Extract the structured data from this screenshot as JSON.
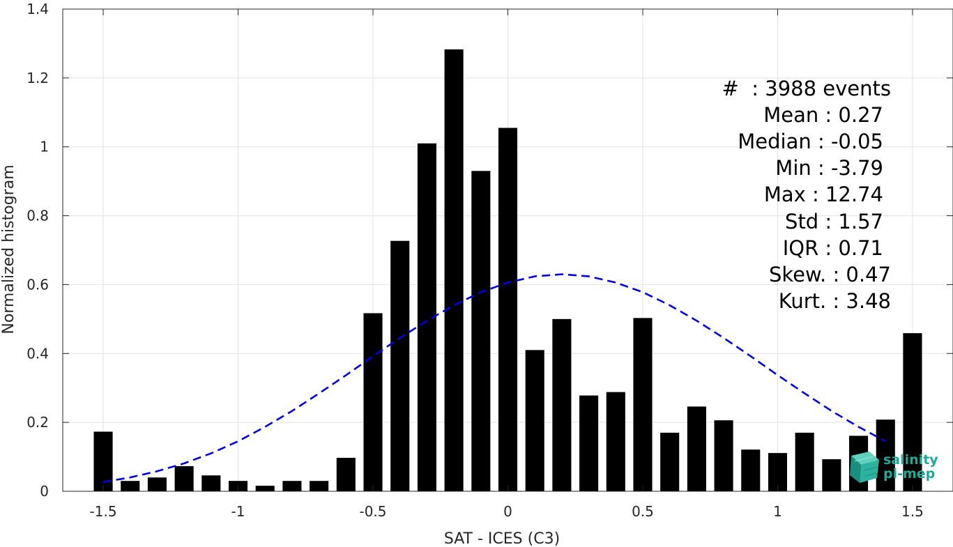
{
  "chart_data": {
    "type": "bar",
    "xlabel": "SAT - ICES (C3)",
    "ylabel": "Normalized histogram",
    "xlim": [
      -1.65,
      1.65
    ],
    "ylim": [
      0,
      1.4
    ],
    "grid": true,
    "bar_width": 0.07,
    "x_ticks": [
      -1.5,
      -1,
      -0.5,
      0,
      0.5,
      1,
      1.5
    ],
    "x_tick_labels": [
      "-1.5",
      "-1",
      "-0.5",
      "0",
      "0.5",
      "1",
      "1.5"
    ],
    "y_ticks": [
      0,
      0.2,
      0.4,
      0.6,
      0.8,
      1,
      1.2,
      1.4
    ],
    "y_tick_labels": [
      "0",
      "0.2",
      "0.4",
      "0.6",
      "0.8",
      "1",
      "1.2",
      "1.4"
    ],
    "bars": {
      "x": [
        -1.5,
        -1.4,
        -1.3,
        -1.2,
        -1.1,
        -1.0,
        -0.9,
        -0.8,
        -0.7,
        -0.6,
        -0.5,
        -0.4,
        -0.3,
        -0.2,
        -0.1,
        0.0,
        0.1,
        0.2,
        0.3,
        0.4,
        0.5,
        0.6,
        0.7,
        0.8,
        0.9,
        1.0,
        1.1,
        1.2,
        1.3,
        1.4,
        1.5
      ],
      "values": [
        0.173,
        0.03,
        0.04,
        0.073,
        0.046,
        0.03,
        0.016,
        0.03,
        0.03,
        0.097,
        0.517,
        0.727,
        1.01,
        1.283,
        0.93,
        1.055,
        0.41,
        0.5,
        0.278,
        0.288,
        0.503,
        0.17,
        0.246,
        0.206,
        0.121,
        0.111,
        0.17,
        0.093,
        0.161,
        0.208,
        0.459
      ],
      "color": "#000000"
    },
    "fit_curve": {
      "type": "dashed-line",
      "color": "#0000e6",
      "x": [
        -1.5,
        -1.4,
        -1.3,
        -1.2,
        -1.1,
        -1.0,
        -0.9,
        -0.8,
        -0.7,
        -0.6,
        -0.5,
        -0.4,
        -0.3,
        -0.2,
        -0.1,
        0.0,
        0.1,
        0.2,
        0.3,
        0.4,
        0.5,
        0.6,
        0.7,
        0.8,
        0.9,
        1.0,
        1.1,
        1.2,
        1.3,
        1.4
      ],
      "y": [
        0.027,
        0.04,
        0.058,
        0.081,
        0.11,
        0.145,
        0.187,
        0.233,
        0.284,
        0.337,
        0.392,
        0.445,
        0.495,
        0.54,
        0.578,
        0.606,
        0.624,
        0.63,
        0.624,
        0.606,
        0.578,
        0.54,
        0.495,
        0.445,
        0.392,
        0.337,
        0.284,
        0.233,
        0.187,
        0.145
      ]
    }
  },
  "stats": {
    "lines": [
      "#  : 3988 events",
      "Mean : 0.27",
      "Median : -0.05",
      "Min : -3.79",
      "Max : 12.74",
      "Std : 1.57",
      "IQR : 0.71",
      "Skew. : 0.47",
      "Kurt. : 3.48"
    ]
  },
  "logo": {
    "line1": "salinity",
    "line2": "pi-mep",
    "color": "#1fa898"
  }
}
